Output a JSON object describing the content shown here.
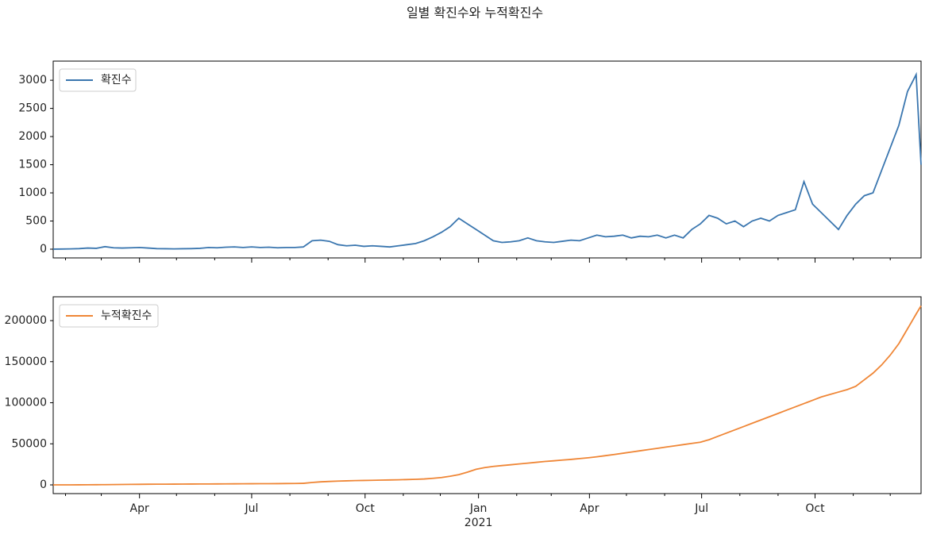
{
  "title": "일별 확진수와 누적확진수",
  "chart_data": [
    {
      "type": "line",
      "legend": "upper left",
      "x": [
        0,
        7,
        14,
        21,
        28,
        35,
        42,
        49,
        56,
        63,
        70,
        77,
        84,
        91,
        98,
        105,
        112,
        119,
        126,
        133,
        140,
        147,
        154,
        161,
        168,
        175,
        182,
        189,
        196,
        203,
        210,
        217,
        224,
        231,
        238,
        245,
        252,
        259,
        266,
        273,
        280,
        287,
        294,
        301,
        308,
        315,
        322,
        329,
        336,
        343,
        350,
        357,
        364,
        371,
        378,
        385,
        392,
        399,
        406,
        413,
        420,
        427,
        434,
        441,
        448,
        455,
        462,
        469,
        476,
        483,
        490,
        497,
        504,
        511,
        518,
        525,
        532,
        539,
        546,
        553,
        560,
        567,
        574,
        581,
        588,
        595,
        602,
        609,
        616,
        623,
        630,
        637,
        644,
        651,
        658,
        665,
        672,
        679,
        686,
        693,
        700,
        704
      ],
      "series": [
        {
          "name": "확진수",
          "color": "#3a76af",
          "values": [
            1,
            3,
            5,
            10,
            20,
            15,
            45,
            25,
            20,
            25,
            30,
            20,
            10,
            8,
            5,
            8,
            10,
            15,
            30,
            25,
            35,
            40,
            30,
            40,
            30,
            35,
            25,
            30,
            30,
            40,
            150,
            160,
            140,
            80,
            60,
            70,
            50,
            60,
            50,
            40,
            60,
            80,
            100,
            150,
            220,
            300,
            400,
            550,
            450,
            350,
            250,
            150,
            120,
            130,
            150,
            200,
            150,
            130,
            120,
            140,
            160,
            150,
            200,
            250,
            220,
            230,
            250,
            200,
            230,
            220,
            250,
            200,
            250,
            200,
            350,
            450,
            600,
            550,
            450,
            500,
            400,
            500,
            550,
            500,
            600,
            650,
            700,
            1200,
            800,
            650,
            500,
            350,
            600,
            800,
            950,
            1000,
            1400,
            1800,
            2200,
            2800,
            3100,
            1500
          ]
        }
      ],
      "xlim": [
        0,
        704
      ],
      "ylim": [
        -155,
        3340
      ],
      "yticks": [
        0,
        500,
        1000,
        1500,
        2000,
        2500,
        3000
      ]
    },
    {
      "type": "line",
      "legend": "upper left",
      "x": [
        0,
        7,
        14,
        21,
        28,
        35,
        42,
        49,
        56,
        63,
        70,
        77,
        84,
        91,
        98,
        105,
        112,
        119,
        126,
        133,
        140,
        147,
        154,
        161,
        168,
        175,
        182,
        189,
        196,
        203,
        210,
        217,
        224,
        231,
        238,
        245,
        252,
        259,
        266,
        273,
        280,
        287,
        294,
        301,
        308,
        315,
        322,
        329,
        336,
        343,
        350,
        357,
        364,
        371,
        378,
        385,
        392,
        399,
        406,
        413,
        420,
        427,
        434,
        441,
        448,
        455,
        462,
        469,
        476,
        483,
        490,
        497,
        504,
        511,
        518,
        525,
        532,
        539,
        546,
        553,
        560,
        567,
        574,
        581,
        588,
        595,
        602,
        609,
        616,
        623,
        630,
        637,
        644,
        651,
        658,
        665,
        672,
        679,
        686,
        693,
        700,
        704
      ],
      "series": [
        {
          "name": "누적확진수",
          "color": "#ef8636",
          "values": [
            0,
            20,
            40,
            80,
            150,
            200,
            300,
            400,
            500,
            600,
            700,
            800,
            850,
            900,
            950,
            1000,
            1050,
            1100,
            1150,
            1200,
            1250,
            1300,
            1350,
            1400,
            1450,
            1500,
            1550,
            1650,
            1750,
            1900,
            2900,
            3700,
            4200,
            4600,
            4900,
            5200,
            5400,
            5600,
            5800,
            6000,
            6200,
            6500,
            6800,
            7200,
            8000,
            9000,
            10500,
            12500,
            15500,
            19000,
            21000,
            22500,
            23500,
            24500,
            25500,
            26500,
            27500,
            28500,
            29300,
            30200,
            31000,
            32000,
            33000,
            34200,
            35600,
            37000,
            38500,
            40000,
            41500,
            43000,
            44500,
            46000,
            47500,
            49000,
            50500,
            52000,
            55000,
            59000,
            63000,
            67000,
            71000,
            75000,
            79000,
            83000,
            87000,
            91000,
            95000,
            99000,
            103000,
            107000,
            110000,
            113000,
            116000,
            120000,
            128000,
            136000,
            146000,
            158000,
            172000,
            190000,
            208000,
            218000
          ]
        }
      ],
      "xlim": [
        0,
        704
      ],
      "ylim": [
        -10600,
        229000
      ],
      "yticks": [
        0,
        50000,
        100000,
        150000,
        200000
      ],
      "xticks": [
        {
          "value": 70,
          "label": "Apr"
        },
        {
          "value": 161,
          "label": "Jul"
        },
        {
          "value": 253,
          "label": "Oct"
        },
        {
          "value": 345,
          "label": "Jan",
          "sublabel": "2021"
        },
        {
          "value": 435,
          "label": "Apr"
        },
        {
          "value": 526,
          "label": "Jul"
        },
        {
          "value": 618,
          "label": "Oct"
        }
      ],
      "xminorticks": [
        10,
        39,
        100,
        131,
        192,
        223,
        284,
        314,
        376,
        404,
        465,
        496,
        557,
        588,
        649,
        679
      ]
    }
  ]
}
